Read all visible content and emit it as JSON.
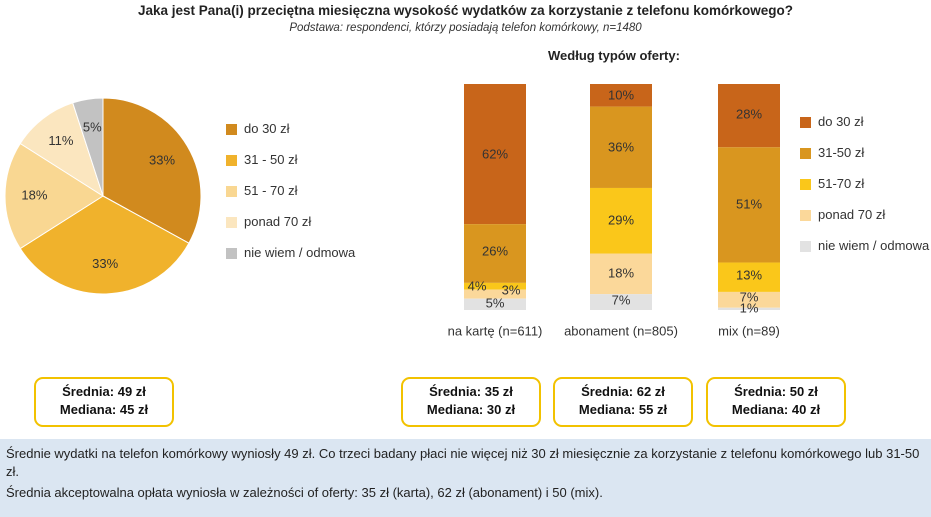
{
  "header": {
    "title": "Jaka jest Pana(i) przeciętna miesięczna wysokość wydatków za korzystanie z telefonu komórkowego?",
    "subtitle": "Podstawa:  respondenci, którzy posiadają telefon komórkowy, n=1480",
    "right_title": "Według typów oferty:"
  },
  "colors": {
    "do30": "#d18a1e",
    "do30_bar": "#c8651a",
    "31_50": "#f0b22c",
    "31_50_bar": "#d9961f",
    "51_70": "#f9d792",
    "51_70_bar": "#fac71a",
    "ponad70": "#fbe6bf",
    "ponad70_bar": "#fbd89a",
    "nie_wiem": "#c2c2c2",
    "nie_wiem_bar": "#e2e2e2",
    "box_border": "#f2c200",
    "footer_bg": "#dbe6f2"
  },
  "chart_data": [
    {
      "type": "pie",
      "categories": [
        "do 30 zł",
        "31 - 50 zł",
        "51 - 70 zł",
        "ponad 70 zł",
        "nie wiem / odmowa"
      ],
      "values": [
        33,
        33,
        18,
        11,
        5
      ],
      "labels": [
        "33%",
        "33%",
        "18%",
        "11%",
        "5%"
      ]
    },
    {
      "type": "bar",
      "stacked": true,
      "categories": [
        "na kartę (n=611)",
        "abonament (n=805)",
        "mix (n=89)"
      ],
      "series": [
        {
          "name": "do 30 zł",
          "values": [
            62,
            10,
            28
          ],
          "labels": [
            "62%",
            "10%",
            "28%"
          ]
        },
        {
          "name": "31-50 zł",
          "values": [
            26,
            36,
            51
          ],
          "labels": [
            "26%",
            "36%",
            "51%"
          ]
        },
        {
          "name": "51-70 zł",
          "values": [
            3,
            29,
            13
          ],
          "labels": [
            "3%",
            "29%",
            "13%"
          ]
        },
        {
          "name": "ponad 70 zł",
          "values": [
            4,
            18,
            7
          ],
          "labels": [
            "4%",
            "18%",
            "7%"
          ]
        },
        {
          "name": "nie wiem / odmowa",
          "values": [
            5,
            7,
            1
          ],
          "labels": [
            "5%",
            "7%",
            "1%"
          ]
        }
      ]
    }
  ],
  "pie_legend": [
    "do 30 zł",
    "31 - 50 zł",
    "51 - 70 zł",
    "ponad 70 zł",
    "nie wiem / odmowa"
  ],
  "bar_legend": [
    "do 30 zł",
    "31-50 zł",
    "51-70 zł",
    "ponad 70 zł",
    "nie wiem / odmowa"
  ],
  "stats": [
    {
      "srednia": "Średnia:  49 zł",
      "mediana": "Mediana:  45 zł"
    },
    {
      "srednia": "Średnia:  35 zł",
      "mediana": "Mediana:  30 zł"
    },
    {
      "srednia": "Średnia:  62 zł",
      "mediana": "Mediana:  55 zł"
    },
    {
      "srednia": "Średnia:  50 zł",
      "mediana": "Mediana:  40 zł"
    }
  ],
  "footer": {
    "line1": "Średnie wydatki na telefon komórkowy wyniosły 49 zł. Co trzeci badany płaci nie więcej niż 30 zł miesięcznie za korzystanie z telefonu komórkowego lub 31-50 zł.",
    "line2": "Średnia akceptowalna opłata wyniosła w zależności of oferty:  35 zł (karta), 62 zł (abonament) i 50 (mix)."
  }
}
